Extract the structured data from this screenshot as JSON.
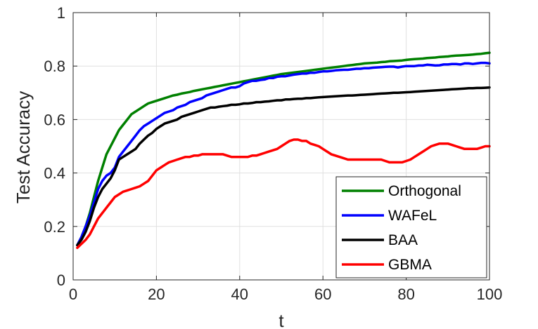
{
  "chart_data": {
    "type": "line",
    "title": "",
    "xlabel": "t",
    "ylabel": "Test Accuracy",
    "xlim": [
      0,
      100
    ],
    "ylim": [
      0,
      1
    ],
    "xticks": [
      "0",
      "20",
      "40",
      "60",
      "80",
      "100"
    ],
    "yticks": [
      "0",
      "0.2",
      "0.4",
      "0.6",
      "0.8",
      "1"
    ],
    "grid": true,
    "legend_position": "bottom-right",
    "x": [
      1,
      2,
      3,
      4,
      5,
      6,
      7,
      8,
      9,
      10,
      11,
      12,
      13,
      14,
      15,
      16,
      17,
      18,
      19,
      20,
      21,
      22,
      23,
      24,
      25,
      26,
      27,
      28,
      29,
      30,
      31,
      32,
      33,
      34,
      35,
      36,
      37,
      38,
      39,
      40,
      41,
      42,
      43,
      44,
      45,
      46,
      47,
      48,
      49,
      50,
      51,
      52,
      53,
      54,
      55,
      56,
      57,
      58,
      59,
      60,
      61,
      62,
      63,
      64,
      65,
      66,
      67,
      68,
      69,
      70,
      71,
      72,
      73,
      74,
      75,
      76,
      77,
      78,
      79,
      80,
      81,
      82,
      83,
      84,
      85,
      86,
      87,
      88,
      89,
      90,
      91,
      92,
      93,
      94,
      95,
      96,
      97,
      98,
      99,
      100
    ],
    "series": [
      {
        "name": "Orthogonal",
        "color": "#008000",
        "values": [
          0.13,
          0.16,
          0.2,
          0.25,
          0.31,
          0.37,
          0.42,
          0.47,
          0.5,
          0.53,
          0.56,
          0.58,
          0.6,
          0.62,
          0.63,
          0.64,
          0.65,
          0.66,
          0.665,
          0.67,
          0.675,
          0.68,
          0.685,
          0.69,
          0.693,
          0.697,
          0.7,
          0.703,
          0.707,
          0.71,
          0.713,
          0.716,
          0.719,
          0.722,
          0.725,
          0.728,
          0.731,
          0.734,
          0.737,
          0.74,
          0.743,
          0.746,
          0.749,
          0.752,
          0.755,
          0.758,
          0.761,
          0.764,
          0.767,
          0.77,
          0.772,
          0.774,
          0.776,
          0.778,
          0.78,
          0.782,
          0.784,
          0.786,
          0.788,
          0.79,
          0.792,
          0.794,
          0.796,
          0.798,
          0.8,
          0.802,
          0.804,
          0.806,
          0.808,
          0.81,
          0.811,
          0.812,
          0.813,
          0.815,
          0.816,
          0.818,
          0.819,
          0.82,
          0.821,
          0.823,
          0.825,
          0.826,
          0.827,
          0.828,
          0.83,
          0.831,
          0.832,
          0.834,
          0.835,
          0.836,
          0.838,
          0.839,
          0.84,
          0.841,
          0.842,
          0.843,
          0.845,
          0.846,
          0.848,
          0.85
        ]
      },
      {
        "name": "WAFeL",
        "color": "#0000ff",
        "values": [
          0.13,
          0.16,
          0.2,
          0.24,
          0.29,
          0.34,
          0.37,
          0.39,
          0.4,
          0.42,
          0.46,
          0.48,
          0.5,
          0.52,
          0.54,
          0.56,
          0.575,
          0.585,
          0.595,
          0.605,
          0.615,
          0.625,
          0.63,
          0.635,
          0.645,
          0.65,
          0.655,
          0.665,
          0.67,
          0.675,
          0.68,
          0.69,
          0.695,
          0.7,
          0.705,
          0.71,
          0.715,
          0.72,
          0.72,
          0.725,
          0.735,
          0.74,
          0.745,
          0.745,
          0.748,
          0.75,
          0.755,
          0.755,
          0.76,
          0.762,
          0.762,
          0.765,
          0.768,
          0.77,
          0.772,
          0.772,
          0.775,
          0.775,
          0.778,
          0.78,
          0.78,
          0.782,
          0.784,
          0.785,
          0.786,
          0.786,
          0.788,
          0.79,
          0.79,
          0.792,
          0.792,
          0.794,
          0.795,
          0.796,
          0.797,
          0.798,
          0.798,
          0.795,
          0.798,
          0.8,
          0.8,
          0.8,
          0.802,
          0.802,
          0.805,
          0.804,
          0.802,
          0.803,
          0.806,
          0.806,
          0.808,
          0.808,
          0.806,
          0.81,
          0.81,
          0.808,
          0.81,
          0.812,
          0.812,
          0.81
        ]
      },
      {
        "name": "BAA",
        "color": "#000000",
        "values": [
          0.13,
          0.15,
          0.18,
          0.22,
          0.27,
          0.31,
          0.34,
          0.36,
          0.38,
          0.41,
          0.45,
          0.46,
          0.47,
          0.48,
          0.49,
          0.51,
          0.525,
          0.54,
          0.55,
          0.565,
          0.575,
          0.585,
          0.59,
          0.595,
          0.6,
          0.61,
          0.615,
          0.62,
          0.625,
          0.63,
          0.635,
          0.64,
          0.645,
          0.645,
          0.648,
          0.65,
          0.652,
          0.655,
          0.655,
          0.657,
          0.66,
          0.66,
          0.662,
          0.665,
          0.665,
          0.667,
          0.668,
          0.67,
          0.672,
          0.672,
          0.675,
          0.675,
          0.677,
          0.678,
          0.678,
          0.68,
          0.68,
          0.682,
          0.683,
          0.684,
          0.685,
          0.686,
          0.687,
          0.688,
          0.689,
          0.69,
          0.69,
          0.691,
          0.692,
          0.693,
          0.694,
          0.695,
          0.696,
          0.697,
          0.698,
          0.699,
          0.7,
          0.7,
          0.701,
          0.702,
          0.703,
          0.704,
          0.705,
          0.706,
          0.707,
          0.708,
          0.709,
          0.71,
          0.711,
          0.712,
          0.713,
          0.714,
          0.715,
          0.716,
          0.717,
          0.717,
          0.718,
          0.718,
          0.719,
          0.72
        ]
      },
      {
        "name": "GBMA",
        "color": "#ff0000",
        "values": [
          0.12,
          0.135,
          0.15,
          0.17,
          0.2,
          0.23,
          0.25,
          0.27,
          0.29,
          0.31,
          0.32,
          0.33,
          0.335,
          0.34,
          0.345,
          0.35,
          0.36,
          0.37,
          0.39,
          0.41,
          0.42,
          0.43,
          0.44,
          0.445,
          0.45,
          0.455,
          0.46,
          0.46,
          0.465,
          0.465,
          0.47,
          0.47,
          0.47,
          0.47,
          0.47,
          0.47,
          0.465,
          0.46,
          0.46,
          0.46,
          0.46,
          0.46,
          0.465,
          0.465,
          0.47,
          0.475,
          0.48,
          0.485,
          0.49,
          0.5,
          0.51,
          0.52,
          0.525,
          0.525,
          0.52,
          0.52,
          0.51,
          0.505,
          0.5,
          0.49,
          0.48,
          0.47,
          0.465,
          0.46,
          0.455,
          0.45,
          0.45,
          0.45,
          0.45,
          0.45,
          0.45,
          0.45,
          0.45,
          0.45,
          0.445,
          0.44,
          0.44,
          0.44,
          0.44,
          0.445,
          0.45,
          0.46,
          0.47,
          0.48,
          0.49,
          0.5,
          0.505,
          0.51,
          0.51,
          0.51,
          0.505,
          0.5,
          0.495,
          0.49,
          0.49,
          0.49,
          0.49,
          0.495,
          0.5,
          0.5
        ]
      }
    ]
  }
}
